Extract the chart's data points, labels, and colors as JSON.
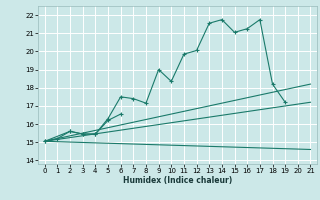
{
  "xlabel": "Humidex (Indice chaleur)",
  "bg_color": "#cce8e8",
  "grid_color": "#ffffff",
  "line_color": "#1a7a6a",
  "xlim": [
    -0.5,
    21.5
  ],
  "ylim": [
    13.8,
    22.5
  ],
  "yticks": [
    14,
    15,
    16,
    17,
    18,
    19,
    20,
    21,
    22
  ],
  "xticks": [
    0,
    1,
    2,
    3,
    4,
    5,
    6,
    7,
    8,
    9,
    10,
    11,
    12,
    13,
    14,
    15,
    16,
    17,
    18,
    19,
    20,
    21
  ],
  "main_curve": {
    "x": [
      0,
      1,
      2,
      3,
      4,
      5,
      6,
      7,
      8,
      9,
      10,
      11,
      12,
      13,
      14,
      15,
      16,
      17,
      18,
      19
    ],
    "y": [
      15.05,
      15.2,
      15.6,
      15.45,
      15.45,
      16.3,
      17.5,
      17.4,
      17.15,
      19.0,
      18.35,
      19.85,
      20.05,
      21.55,
      21.75,
      21.05,
      21.25,
      21.75,
      18.2,
      17.2
    ]
  },
  "short_curve": {
    "x": [
      0,
      2,
      3,
      4,
      5,
      6
    ],
    "y": [
      15.05,
      15.6,
      15.45,
      15.45,
      16.2,
      16.55
    ]
  },
  "trend_lines": [
    {
      "x": [
        0,
        21
      ],
      "y": [
        15.05,
        14.6
      ]
    },
    {
      "x": [
        0,
        21
      ],
      "y": [
        15.05,
        17.2
      ]
    },
    {
      "x": [
        0,
        21
      ],
      "y": [
        15.05,
        18.2
      ]
    }
  ]
}
